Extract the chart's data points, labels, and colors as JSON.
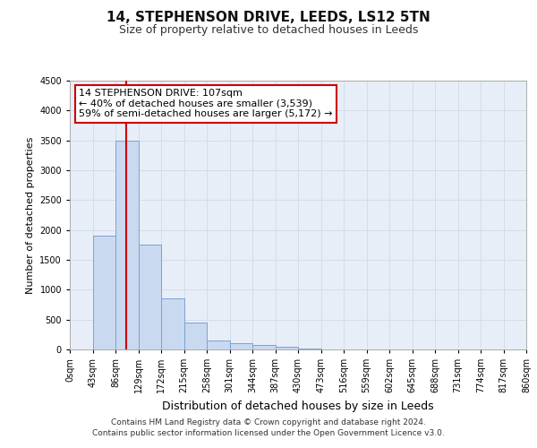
{
  "title_line1": "14, STEPHENSON DRIVE, LEEDS, LS12 5TN",
  "title_line2": "Size of property relative to detached houses in Leeds",
  "xlabel": "Distribution of detached houses by size in Leeds",
  "ylabel": "Number of detached properties",
  "bin_labels": [
    "0sqm",
    "43sqm",
    "86sqm",
    "129sqm",
    "172sqm",
    "215sqm",
    "258sqm",
    "301sqm",
    "344sqm",
    "387sqm",
    "430sqm",
    "473sqm",
    "516sqm",
    "559sqm",
    "602sqm",
    "645sqm",
    "688sqm",
    "731sqm",
    "774sqm",
    "817sqm",
    "860sqm"
  ],
  "bar_values": [
    5,
    1900,
    3500,
    1750,
    850,
    450,
    150,
    100,
    75,
    50,
    10,
    0,
    0,
    0,
    0,
    0,
    0,
    0,
    0,
    0
  ],
  "bar_color": "#c9d9f0",
  "bar_edge_color": "#7ba3d4",
  "vline_color": "#cc0000",
  "ylim": [
    0,
    4500
  ],
  "yticks": [
    0,
    500,
    1000,
    1500,
    2000,
    2500,
    3000,
    3500,
    4000,
    4500
  ],
  "annotation_text": "14 STEPHENSON DRIVE: 107sqm\n← 40% of detached houses are smaller (3,539)\n59% of semi-detached houses are larger (5,172) →",
  "annotation_box_color": "#ffffff",
  "annotation_box_edge": "#cc0000",
  "footer_line1": "Contains HM Land Registry data © Crown copyright and database right 2024.",
  "footer_line2": "Contains public sector information licensed under the Open Government Licence v3.0.",
  "grid_color": "#d4dcea",
  "plot_bg_color": "#e8eef8",
  "title1_fontsize": 11,
  "title2_fontsize": 9,
  "ylabel_fontsize": 8,
  "xlabel_fontsize": 9,
  "tick_fontsize": 7,
  "annot_fontsize": 8,
  "footer_fontsize": 6.5
}
